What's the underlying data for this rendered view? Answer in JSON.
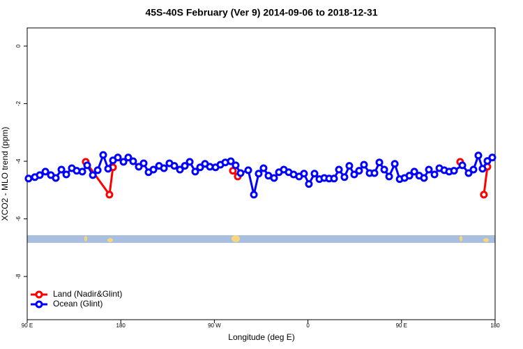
{
  "chart_data": {
    "type": "line",
    "title": "45S-40S February (Ver 9)   2014-09-06 to 2018-12-31",
    "x_label": "Longitude (deg E)",
    "y_label": "XCO2 - MLO trend (ppm)",
    "xlim": [
      90,
      540
    ],
    "xticks": [
      {
        "value": 90,
        "label": "90 E"
      },
      {
        "value": 180,
        "label": "180"
      },
      {
        "value": 270,
        "label": "90 W"
      },
      {
        "value": 360,
        "label": "0"
      },
      {
        "value": 450,
        "label": "90 E"
      },
      {
        "value": 540,
        "label": "180"
      }
    ],
    "ylim": [
      -9.5,
      0.63
    ],
    "yticks": [
      0,
      -2,
      -4,
      -6,
      -8
    ],
    "legend": "bottom-left",
    "series": [
      {
        "name": "Land (Nadir&Glint)",
        "color": "#ff0000",
        "x": [
          146.3,
          169.1,
          172.5,
          null,
          287.8,
          292.5,
          null,
          506.4,
          null,
          529.2,
          532.6
        ],
        "values": [
          -4.02,
          -5.16,
          -4.21,
          null,
          -4.33,
          -4.53,
          null,
          -4.02,
          null,
          -5.16,
          -4.19
        ]
      },
      {
        "name": "Ocean (Glint)",
        "color": "#0000ff",
        "x": [
          91.3,
          97.4,
          102.1,
          107.5,
          112.8,
          117.5,
          122.9,
          127.6,
          132.9,
          137.6,
          143.0,
          147.7,
          153.1,
          157.8,
          163.1,
          167.8,
          172.5,
          177.2,
          182.6,
          187.2,
          191.9,
          197.3,
          202.0,
          206.7,
          211.4,
          216.8,
          221.5,
          226.8,
          231.5,
          236.9,
          241.6,
          246.3,
          251.6,
          256.3,
          261.0,
          265.7,
          271.1,
          275.8,
          280.5,
          285.8,
          290.5,
          295.2,
          302.6,
          308.0,
          312.6,
          317.3,
          322.0,
          327.4,
          332.1,
          336.8,
          341.5,
          346.2,
          351.5,
          356.2,
          360.9,
          366.3,
          371.0,
          375.7,
          380.4,
          385.1,
          389.8,
          395.1,
          399.8,
          404.5,
          409.2,
          413.9,
          419.3,
          424.0,
          428.7,
          433.4,
          438.1,
          443.5,
          448.2,
          452.9,
          457.6,
          462.3,
          467.0,
          471.6,
          476.3,
          481.7,
          486.4,
          491.1,
          495.8,
          500.5,
          508.5,
          514.5,
          519.2,
          523.9,
          527.9,
          532.6,
          537.3
        ],
        "values": [
          -4.6,
          -4.55,
          -4.48,
          -4.36,
          -4.48,
          -4.58,
          -4.29,
          -4.46,
          -4.24,
          -4.33,
          -4.36,
          -4.14,
          -4.48,
          -4.31,
          -3.78,
          -4.26,
          -3.97,
          -3.87,
          -4.02,
          -3.87,
          -4.0,
          -4.19,
          -4.07,
          -4.38,
          -4.29,
          -4.16,
          -4.24,
          -4.07,
          -4.16,
          -4.29,
          -4.16,
          -4.02,
          -4.36,
          -4.21,
          -4.09,
          -4.19,
          -4.21,
          -4.12,
          -4.04,
          -4.0,
          -4.14,
          -4.41,
          -4.31,
          -5.16,
          -4.43,
          -4.24,
          -4.5,
          -4.58,
          -4.38,
          -4.29,
          -4.38,
          -4.46,
          -4.53,
          -4.43,
          -4.79,
          -4.43,
          -4.62,
          -4.58,
          -4.6,
          -4.6,
          -4.29,
          -4.55,
          -4.16,
          -4.46,
          -4.33,
          -4.12,
          -4.41,
          -4.41,
          -4.04,
          -4.29,
          -4.53,
          -4.09,
          -4.62,
          -4.58,
          -4.5,
          -4.36,
          -4.5,
          -4.58,
          -4.29,
          -4.46,
          -4.24,
          -4.31,
          -4.36,
          -4.33,
          -4.14,
          -4.41,
          -4.29,
          -3.8,
          -4.26,
          -3.99,
          -3.87
        ]
      }
    ]
  }
}
